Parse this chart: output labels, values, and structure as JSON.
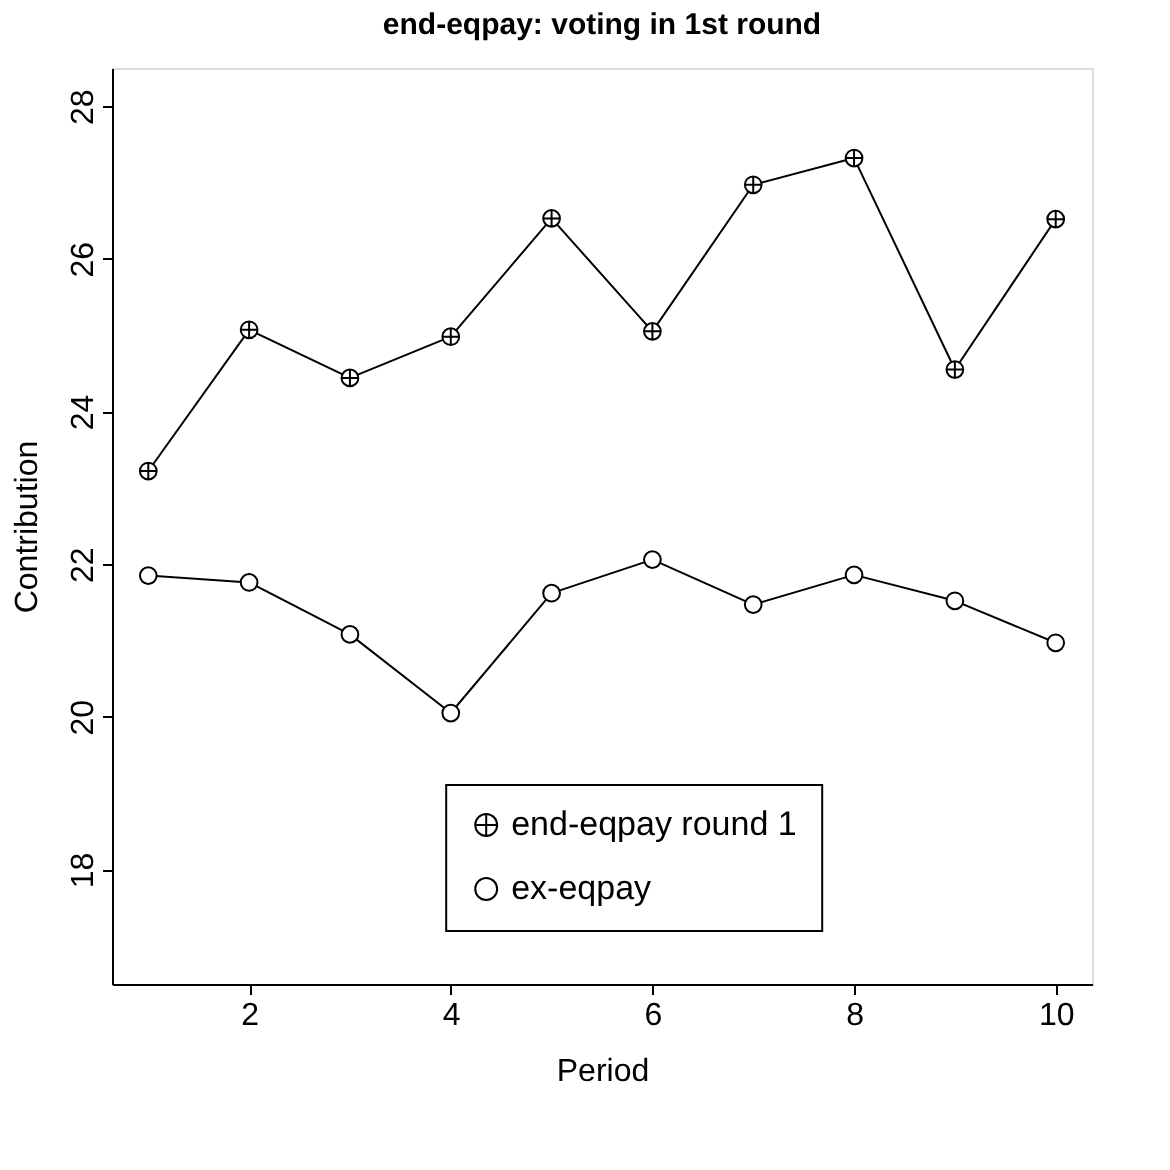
{
  "chart_data": {
    "type": "line",
    "title": "end-eqpay: voting in 1st round",
    "xlabel": "Period",
    "ylabel": "Contribution",
    "x": [
      1,
      2,
      3,
      4,
      5,
      6,
      7,
      8,
      9,
      10
    ],
    "series": [
      {
        "name": "end-eqpay round 1",
        "color": "#000000",
        "marker": "cross",
        "values": [
          23.22,
          25.07,
          24.44,
          24.98,
          26.53,
          25.05,
          26.97,
          27.32,
          24.55,
          26.52
        ]
      },
      {
        "name": "ex-eqpay",
        "color": "#000000",
        "marker": "circle",
        "values": [
          21.85,
          21.76,
          21.08,
          20.05,
          21.62,
          22.06,
          21.47,
          21.86,
          21.52,
          20.97
        ]
      }
    ],
    "xlim": [
      0.64,
      10.36
    ],
    "xticks": [
      2,
      4,
      6,
      8,
      10
    ],
    "ylim": [
      16.5,
      28.5
    ],
    "yticks": [
      18,
      20,
      22,
      24,
      26,
      28
    ],
    "grid": false,
    "legend": "bottom",
    "line_style": "solid"
  }
}
